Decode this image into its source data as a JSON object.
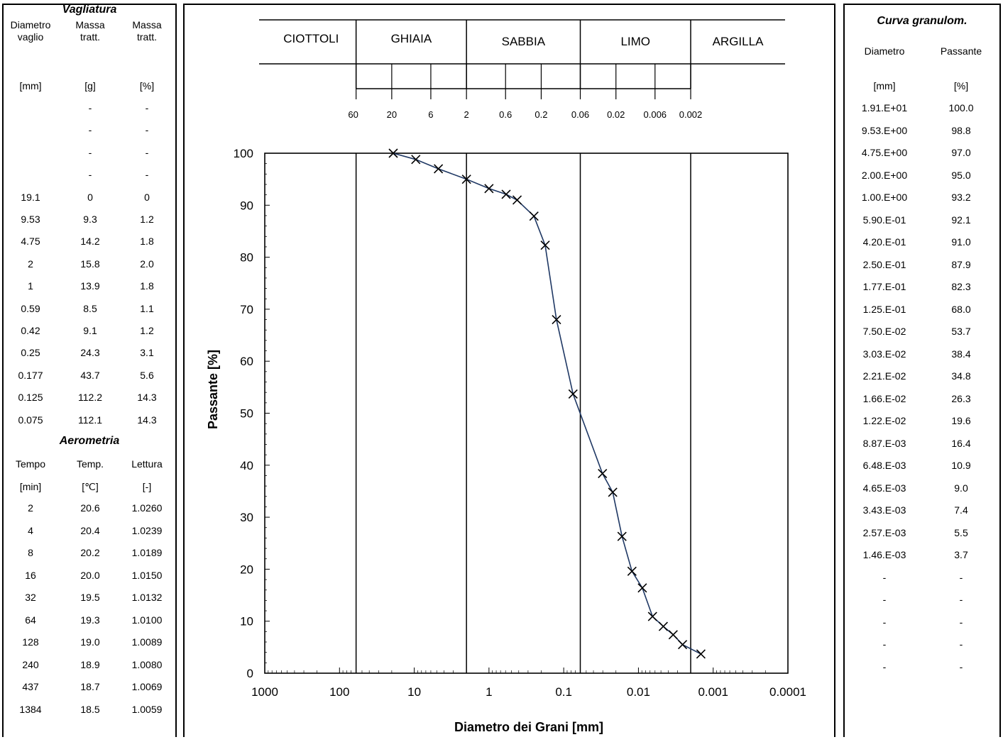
{
  "left": {
    "sieve_title": "Vagliatura",
    "sieve_headers": [
      [
        "Diametro",
        "vaglio"
      ],
      [
        "Massa",
        "tratt."
      ],
      [
        "Massa",
        "tratt."
      ]
    ],
    "sieve_units": [
      "[mm]",
      "[g]",
      "[%]"
    ],
    "sieve_rows": [
      [
        "",
        "-",
        "-"
      ],
      [
        "",
        "-",
        "-"
      ],
      [
        "",
        "-",
        "-"
      ],
      [
        "",
        "-",
        "-"
      ],
      [
        "19.1",
        "0",
        "0"
      ],
      [
        "9.53",
        "9.3",
        "1.2"
      ],
      [
        "4.75",
        "14.2",
        "1.8"
      ],
      [
        "2",
        "15.8",
        "2.0"
      ],
      [
        "1",
        "13.9",
        "1.8"
      ],
      [
        "0.59",
        "8.5",
        "1.1"
      ],
      [
        "0.42",
        "9.1",
        "1.2"
      ],
      [
        "0.25",
        "24.3",
        "3.1"
      ],
      [
        "0.177",
        "43.7",
        "5.6"
      ],
      [
        "0.125",
        "112.2",
        "14.3"
      ],
      [
        "0.075",
        "112.1",
        "14.3"
      ]
    ],
    "aero_title": "Aerometria",
    "aero_headers": [
      "Tempo",
      "Temp.",
      "Lettura"
    ],
    "aero_units": [
      "[min]",
      "[℃]",
      "[-]"
    ],
    "aero_rows": [
      [
        "2",
        "20.6",
        "1.0260"
      ],
      [
        "4",
        "20.4",
        "1.0239"
      ],
      [
        "8",
        "20.2",
        "1.0189"
      ],
      [
        "16",
        "20.0",
        "1.0150"
      ],
      [
        "32",
        "19.5",
        "1.0132"
      ],
      [
        "64",
        "19.3",
        "1.0100"
      ],
      [
        "128",
        "19.0",
        "1.0089"
      ],
      [
        "240",
        "18.9",
        "1.0080"
      ],
      [
        "437",
        "18.7",
        "1.0069"
      ],
      [
        "1384",
        "18.5",
        "1.0059"
      ]
    ]
  },
  "right": {
    "title": "Curva granulom.",
    "headers": [
      "Diametro",
      "Passante"
    ],
    "units": [
      "[mm]",
      "[%]"
    ],
    "rows": [
      [
        "1.91.E+01",
        "100.0"
      ],
      [
        "9.53.E+00",
        "98.8"
      ],
      [
        "4.75.E+00",
        "97.0"
      ],
      [
        "2.00.E+00",
        "95.0"
      ],
      [
        "1.00.E+00",
        "93.2"
      ],
      [
        "5.90.E-01",
        "92.1"
      ],
      [
        "4.20.E-01",
        "91.0"
      ],
      [
        "2.50.E-01",
        "87.9"
      ],
      [
        "1.77.E-01",
        "82.3"
      ],
      [
        "1.25.E-01",
        "68.0"
      ],
      [
        "7.50.E-02",
        "53.7"
      ],
      [
        "3.03.E-02",
        "38.4"
      ],
      [
        "2.21.E-02",
        "34.8"
      ],
      [
        "1.66.E-02",
        "26.3"
      ],
      [
        "1.22.E-02",
        "19.6"
      ],
      [
        "8.87.E-03",
        "16.4"
      ],
      [
        "6.48.E-03",
        "10.9"
      ],
      [
        "4.65.E-03",
        "9.0"
      ],
      [
        "3.43.E-03",
        "7.4"
      ],
      [
        "2.57.E-03",
        "5.5"
      ],
      [
        "1.46.E-03",
        "3.7"
      ],
      [
        "-",
        "-"
      ],
      [
        "-",
        "-"
      ],
      [
        "-",
        "-"
      ],
      [
        "-",
        "-"
      ],
      [
        "-",
        "-"
      ]
    ]
  },
  "chart_data": {
    "type": "scatter",
    "title": "",
    "xlabel": "Diametro dei Grani [mm]",
    "ylabel": "Passante [%]",
    "x_scale": "log",
    "x_reversed": true,
    "xlim": [
      1000,
      0.0001
    ],
    "ylim": [
      0,
      100
    ],
    "x_tick_labels": [
      "1000",
      "100",
      "10",
      "1",
      "0.1",
      "0.01",
      "0.001",
      "0.0001"
    ],
    "y_tick_labels": [
      "0",
      "10",
      "20",
      "30",
      "40",
      "50",
      "60",
      "70",
      "80",
      "90",
      "100"
    ],
    "line_color": "#1f3864",
    "marker": "x",
    "grid": false,
    "class_boundaries": [
      60,
      2,
      0.06,
      0.002
    ],
    "series": [
      {
        "x": [
          19.1,
          9.53,
          4.75,
          2.0,
          1.0,
          0.59,
          0.42,
          0.25,
          0.177,
          0.125,
          0.075,
          0.0303,
          0.0221,
          0.0166,
          0.0122,
          0.00887,
          0.00648,
          0.00465,
          0.00343,
          0.00257,
          0.00146
        ],
        "y": [
          100.0,
          98.8,
          97.0,
          95.0,
          93.2,
          92.1,
          91.0,
          87.9,
          82.3,
          68.0,
          53.7,
          38.4,
          34.8,
          26.3,
          19.6,
          16.4,
          10.9,
          9.0,
          7.4,
          5.5,
          3.7
        ]
      }
    ],
    "classes": [
      "CIOTTOLI",
      "GHIAIA",
      "SABBIA",
      "LIMO",
      "ARGILLA"
    ],
    "class_scale_ticks": [
      {
        "label": "60",
        "v": 60
      },
      {
        "label": "20",
        "v": 20
      },
      {
        "label": "6",
        "v": 6
      },
      {
        "label": "2",
        "v": 2
      },
      {
        "label": "0.6",
        "v": 0.6
      },
      {
        "label": "0.2",
        "v": 0.2
      },
      {
        "label": "0.06",
        "v": 0.06
      },
      {
        "label": "0.02",
        "v": 0.02
      },
      {
        "label": "0.006",
        "v": 0.006
      },
      {
        "label": "0.002",
        "v": 0.002
      }
    ]
  }
}
